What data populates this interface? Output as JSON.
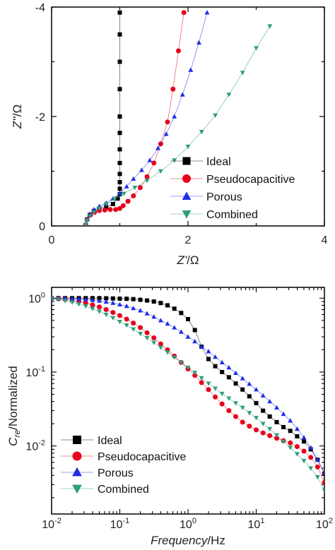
{
  "chart_data": [
    {
      "type": "scatter",
      "xlabel_main": "Z'",
      "xlabel_unit": "/Ω",
      "ylabel_main": "Z''",
      "ylabel_unit": "/Ω",
      "xlim": [
        0,
        4
      ],
      "ylim": [
        0,
        -4
      ],
      "x_tick_labels": [
        "0",
        "2",
        "4"
      ],
      "y_tick_labels": [
        "0",
        "-2",
        "-4"
      ],
      "legend_position": "right",
      "series": [
        {
          "name": "Ideal",
          "color": "#000000",
          "marker": "square",
          "x": [
            0.5,
            0.52,
            0.56,
            0.62,
            0.7,
            0.8,
            0.9,
            0.97,
            1.0,
            1.0,
            1.0,
            1.0,
            1.0,
            1.0,
            1.0,
            1.0,
            1.0,
            1.0,
            1.0,
            1.0
          ],
          "y": [
            -0.02,
            -0.12,
            -0.2,
            -0.27,
            -0.32,
            -0.34,
            -0.4,
            -0.5,
            -0.58,
            -0.68,
            -0.8,
            -0.95,
            -1.15,
            -1.4,
            -1.7,
            -2.0,
            -2.5,
            -3.0,
            -3.5,
            -3.9
          ]
        },
        {
          "name": "Pseudocapacitive",
          "color": "#e8001c",
          "marker": "circle",
          "x": [
            0.5,
            0.52,
            0.57,
            0.63,
            0.7,
            0.78,
            0.86,
            0.94,
            1.0,
            1.05,
            1.12,
            1.2,
            1.3,
            1.4,
            1.5,
            1.6,
            1.7,
            1.78,
            1.86,
            1.94
          ],
          "y": [
            -0.02,
            -0.12,
            -0.2,
            -0.25,
            -0.28,
            -0.29,
            -0.3,
            -0.3,
            -0.32,
            -0.37,
            -0.45,
            -0.55,
            -0.7,
            -0.9,
            -1.15,
            -1.5,
            -1.9,
            -2.5,
            -3.2,
            -3.9
          ]
        },
        {
          "name": "Porous",
          "color": "#1f2ee6",
          "marker": "triangle-up",
          "x": [
            0.5,
            0.52,
            0.56,
            0.62,
            0.7,
            0.8,
            0.9,
            1.0,
            1.1,
            1.2,
            1.32,
            1.44,
            1.56,
            1.68,
            1.8,
            1.92,
            2.04,
            2.16,
            2.28
          ],
          "y": [
            -0.02,
            -0.12,
            -0.22,
            -0.3,
            -0.36,
            -0.42,
            -0.5,
            -0.6,
            -0.72,
            -0.86,
            -1.02,
            -1.2,
            -1.42,
            -1.68,
            -2.0,
            -2.4,
            -2.85,
            -3.35,
            -3.9
          ]
        },
        {
          "name": "Combined",
          "color": "#2e9e7a",
          "marker": "triangle-down",
          "x": [
            0.5,
            0.52,
            0.56,
            0.62,
            0.7,
            0.8,
            0.92,
            1.06,
            1.22,
            1.4,
            1.6,
            1.8,
            2.0,
            2.2,
            2.4,
            2.6,
            2.8,
            3.0,
            3.2
          ],
          "y": [
            -0.02,
            -0.1,
            -0.18,
            -0.25,
            -0.32,
            -0.4,
            -0.49,
            -0.59,
            -0.7,
            -0.83,
            -1.0,
            -1.2,
            -1.45,
            -1.72,
            -2.02,
            -2.4,
            -2.8,
            -3.25,
            -3.65
          ]
        }
      ]
    },
    {
      "type": "scatter",
      "xlabel_main": "Frequency",
      "xlabel_unit": "/Hz",
      "ylabel_main": "C",
      "ylabel_sub": "re",
      "ylabel_unit": "/Normalized",
      "x_scale": "log",
      "y_scale": "log",
      "xlim": [
        0.01,
        100
      ],
      "ylim": [
        0.0012,
        1.4
      ],
      "x_tick_labels": [
        {
          "base": "10",
          "exp": "-2",
          "value": 0.01
        },
        {
          "base": "10",
          "exp": "-1",
          "value": 0.1
        },
        {
          "base": "10",
          "exp": "0",
          "value": 1
        },
        {
          "base": "10",
          "exp": "1",
          "value": 10
        },
        {
          "base": "10",
          "exp": "2",
          "value": 100
        }
      ],
      "y_tick_labels": [
        {
          "base": "10",
          "exp": "0",
          "value": 1
        },
        {
          "base": "10",
          "exp": "-1",
          "value": 0.1
        },
        {
          "base": "10",
          "exp": "-2",
          "value": 0.01
        }
      ],
      "legend_position": "bottom-left",
      "series": [
        {
          "name": "Ideal",
          "color": "#000000",
          "marker": "square",
          "x": [
            0.01,
            0.0126,
            0.0158,
            0.02,
            0.0251,
            0.0316,
            0.0398,
            0.0501,
            0.0631,
            0.0794,
            0.1,
            0.126,
            0.158,
            0.2,
            0.251,
            0.316,
            0.398,
            0.501,
            0.631,
            0.794,
            1.0,
            1.26,
            1.58,
            2.0,
            2.51,
            3.16,
            3.98,
            5.01,
            6.31,
            7.94,
            10,
            12.6,
            15.8,
            20,
            25.1,
            31.6,
            39.8,
            50.1,
            63.1,
            79.4,
            100
          ],
          "y": [
            1.0,
            1.0,
            1.0,
            1.0,
            1.0,
            1.0,
            1.0,
            1.0,
            0.995,
            0.99,
            0.985,
            0.98,
            0.97,
            0.95,
            0.93,
            0.9,
            0.86,
            0.8,
            0.72,
            0.63,
            0.52,
            0.37,
            0.22,
            0.15,
            0.12,
            0.1,
            0.085,
            0.07,
            0.058,
            0.047,
            0.038,
            0.03,
            0.025,
            0.021,
            0.018,
            0.016,
            0.0135,
            0.0115,
            0.009,
            0.0065,
            0.0042
          ]
        },
        {
          "name": "Pseudocapacitive",
          "color": "#e8001c",
          "marker": "circle",
          "x": [
            0.01,
            0.0126,
            0.0158,
            0.02,
            0.0251,
            0.0316,
            0.0398,
            0.0501,
            0.0631,
            0.0794,
            0.1,
            0.126,
            0.158,
            0.2,
            0.251,
            0.316,
            0.398,
            0.501,
            0.631,
            0.794,
            1.0,
            1.26,
            1.58,
            2.0,
            2.51,
            3.16,
            3.98,
            5.01,
            6.31,
            7.94,
            10,
            12.6,
            15.8,
            20,
            25.1,
            31.6,
            39.8,
            50.1,
            63.1,
            79.4,
            100
          ],
          "y": [
            1.0,
            0.98,
            0.96,
            0.93,
            0.9,
            0.86,
            0.81,
            0.76,
            0.7,
            0.64,
            0.58,
            0.52,
            0.46,
            0.4,
            0.34,
            0.29,
            0.24,
            0.2,
            0.165,
            0.135,
            0.11,
            0.09,
            0.072,
            0.058,
            0.046,
            0.037,
            0.03,
            0.025,
            0.021,
            0.0185,
            0.0165,
            0.015,
            0.0138,
            0.0127,
            0.0118,
            0.011,
            0.0098,
            0.0085,
            0.007,
            0.0052,
            0.0032
          ]
        },
        {
          "name": "Porous",
          "color": "#1f2ee6",
          "marker": "triangle-up",
          "x": [
            0.01,
            0.0126,
            0.0158,
            0.02,
            0.0251,
            0.0316,
            0.0398,
            0.0501,
            0.0631,
            0.0794,
            0.1,
            0.126,
            0.158,
            0.2,
            0.251,
            0.316,
            0.398,
            0.501,
            0.631,
            0.794,
            1.0,
            1.26,
            1.58,
            2.0,
            2.51,
            3.16,
            3.98,
            5.01,
            6.31,
            7.94,
            10,
            12.6,
            15.8,
            20,
            25.1,
            31.6,
            39.8,
            50.1,
            63.1,
            79.4,
            100
          ],
          "y": [
            1.0,
            1.0,
            0.99,
            0.98,
            0.97,
            0.96,
            0.94,
            0.92,
            0.89,
            0.86,
            0.82,
            0.78,
            0.73,
            0.68,
            0.62,
            0.56,
            0.5,
            0.45,
            0.4,
            0.35,
            0.3,
            0.26,
            0.22,
            0.19,
            0.16,
            0.135,
            0.115,
            0.097,
            0.082,
            0.069,
            0.058,
            0.048,
            0.04,
            0.033,
            0.027,
            0.022,
            0.017,
            0.013,
            0.0095,
            0.0065,
            0.0043
          ]
        },
        {
          "name": "Combined",
          "color": "#2e9e7a",
          "marker": "triangle-down",
          "x": [
            0.01,
            0.0126,
            0.0158,
            0.02,
            0.0251,
            0.0316,
            0.0398,
            0.0501,
            0.0631,
            0.0794,
            0.1,
            0.126,
            0.158,
            0.2,
            0.251,
            0.316,
            0.398,
            0.501,
            0.631,
            0.794,
            1.0,
            1.26,
            1.58,
            2.0,
            2.51,
            3.16,
            3.98,
            5.01,
            6.31,
            7.94,
            10,
            12.6,
            15.8,
            20,
            25.1,
            31.6,
            39.8,
            50.1,
            63.1,
            79.4,
            100
          ],
          "y": [
            0.99,
            0.96,
            0.92,
            0.88,
            0.83,
            0.78,
            0.72,
            0.66,
            0.6,
            0.54,
            0.48,
            0.43,
            0.38,
            0.33,
            0.29,
            0.25,
            0.215,
            0.185,
            0.158,
            0.135,
            0.115,
            0.098,
            0.083,
            0.07,
            0.06,
            0.051,
            0.044,
            0.038,
            0.033,
            0.028,
            0.024,
            0.02,
            0.017,
            0.014,
            0.0115,
            0.0095,
            0.0078,
            0.0063,
            0.005,
            0.0038,
            0.0025
          ]
        }
      ]
    }
  ]
}
